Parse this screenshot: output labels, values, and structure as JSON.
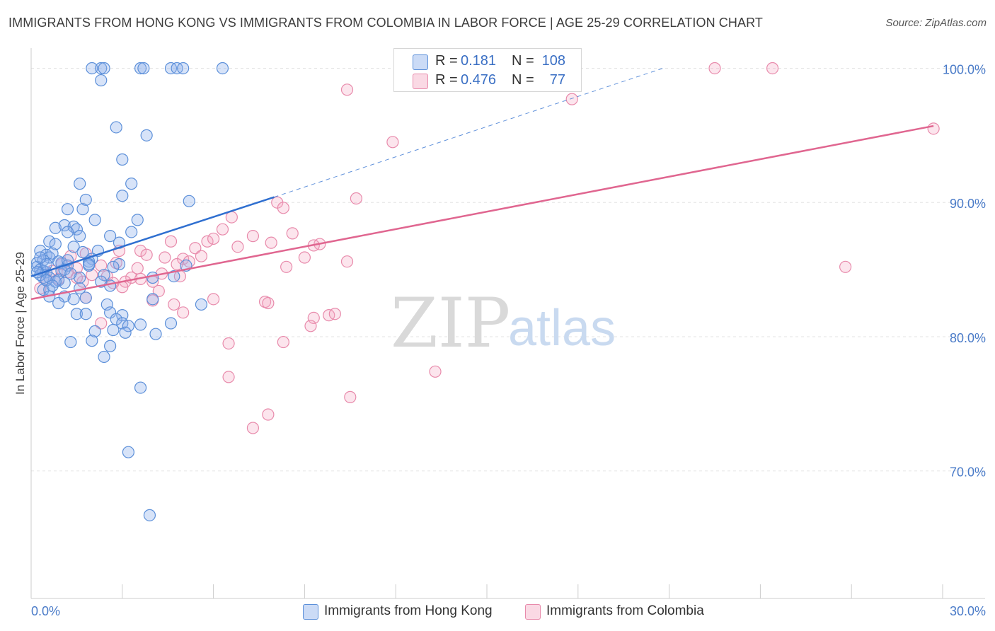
{
  "chart_data": {
    "type": "scatter",
    "title": "IMMIGRANTS FROM HONG KONG VS IMMIGRANTS FROM COLOMBIA IN LABOR FORCE | AGE 25-29 CORRELATION CHART",
    "source": "Source: ZipAtlas.com",
    "xlabel": "",
    "ylabel": "In Labor Force | Age 25-29",
    "xlim": [
      0,
      30
    ],
    "ylim": [
      60.5,
      101.5
    ],
    "x_tick_labels": {
      "min": "0.0%",
      "max": "30.0%"
    },
    "y_ticks": [
      {
        "value": 70,
        "label": "70.0%"
      },
      {
        "value": 80,
        "label": "80.0%"
      },
      {
        "value": 90,
        "label": "90.0%"
      },
      {
        "value": 100,
        "label": "100.0%"
      }
    ],
    "grid": true,
    "legend_position": "bottom-center",
    "watermark": {
      "part1": "ZIP",
      "part2": "atlas"
    },
    "colors": {
      "hong_kong": "#5b8fd9",
      "hong_kong_line": "#2f6fd0",
      "colombia": "#e88aab",
      "colombia_line": "#e06690",
      "tick_text": "#4a7bc8",
      "grid": "#e3e3e3"
    },
    "stats": [
      {
        "r_label": "R =",
        "r_value": "0.181",
        "n_label": "N =",
        "n_value": "108"
      },
      {
        "r_label": "R =",
        "r_value": "0.476",
        "n_label": "N =",
        "n_value": "77"
      }
    ],
    "series": [
      {
        "name": "Immigrants from Hong Kong",
        "trend": {
          "x_start": 0,
          "y_start": 84.5,
          "x_solid_end": 8.0,
          "y_solid_end": 90.4,
          "x_dash_end": 20.8,
          "y_dash_end": 100.0
        },
        "points": [
          [
            2.0,
            100
          ],
          [
            2.3,
            100
          ],
          [
            2.4,
            100
          ],
          [
            3.6,
            100
          ],
          [
            3.7,
            100
          ],
          [
            4.6,
            100
          ],
          [
            4.8,
            100
          ],
          [
            5.0,
            100
          ],
          [
            6.3,
            100
          ],
          [
            2.3,
            99.1
          ],
          [
            2.8,
            95.6
          ],
          [
            3.8,
            95.0
          ],
          [
            3.0,
            93.2
          ],
          [
            1.6,
            91.4
          ],
          [
            3.3,
            91.4
          ],
          [
            3.0,
            90.5
          ],
          [
            5.2,
            90.1
          ],
          [
            1.8,
            90.2
          ],
          [
            1.2,
            89.5
          ],
          [
            1.7,
            89.5
          ],
          [
            2.1,
            88.7
          ],
          [
            3.5,
            88.7
          ],
          [
            0.8,
            88.1
          ],
          [
            1.1,
            88.3
          ],
          [
            1.4,
            88.2
          ],
          [
            1.5,
            88.0
          ],
          [
            1.2,
            87.8
          ],
          [
            1.6,
            87.5
          ],
          [
            2.6,
            87.5
          ],
          [
            3.3,
            87.8
          ],
          [
            0.6,
            87.1
          ],
          [
            0.8,
            86.9
          ],
          [
            2.9,
            87.0
          ],
          [
            1.4,
            86.7
          ],
          [
            1.7,
            86.3
          ],
          [
            2.2,
            86.4
          ],
          [
            0.3,
            86.4
          ],
          [
            0.5,
            86.1
          ],
          [
            0.6,
            85.9
          ],
          [
            2.0,
            85.8
          ],
          [
            1.9,
            85.6
          ],
          [
            0.2,
            85.5
          ],
          [
            0.4,
            85.7
          ],
          [
            1.0,
            85.5
          ],
          [
            1.2,
            85.3
          ],
          [
            1.9,
            85.3
          ],
          [
            2.9,
            85.4
          ],
          [
            5.1,
            85.3
          ],
          [
            0.2,
            85.2
          ],
          [
            0.3,
            85.0
          ],
          [
            0.4,
            84.9
          ],
          [
            0.5,
            84.8
          ],
          [
            1.0,
            84.9
          ],
          [
            0.4,
            84.4
          ],
          [
            0.6,
            84.4
          ],
          [
            0.9,
            84.2
          ],
          [
            1.6,
            84.4
          ],
          [
            2.4,
            84.6
          ],
          [
            4.0,
            84.4
          ],
          [
            4.7,
            84.5
          ],
          [
            0.3,
            84.6
          ],
          [
            1.1,
            84.0
          ],
          [
            2.3,
            84.1
          ],
          [
            0.4,
            83.5
          ],
          [
            0.6,
            83.5
          ],
          [
            1.6,
            83.6
          ],
          [
            2.6,
            83.8
          ],
          [
            0.6,
            83.0
          ],
          [
            1.1,
            83.0
          ],
          [
            1.4,
            82.8
          ],
          [
            1.8,
            82.9
          ],
          [
            0.9,
            82.5
          ],
          [
            2.5,
            82.4
          ],
          [
            4.0,
            82.8
          ],
          [
            5.6,
            82.4
          ],
          [
            1.5,
            81.7
          ],
          [
            1.8,
            81.7
          ],
          [
            2.6,
            81.8
          ],
          [
            3.0,
            81.6
          ],
          [
            2.8,
            81.3
          ],
          [
            3.0,
            81.0
          ],
          [
            3.2,
            80.8
          ],
          [
            3.6,
            80.9
          ],
          [
            4.6,
            81.0
          ],
          [
            2.1,
            80.4
          ],
          [
            2.7,
            80.5
          ],
          [
            3.1,
            80.3
          ],
          [
            4.1,
            80.2
          ],
          [
            1.3,
            79.6
          ],
          [
            2.0,
            79.7
          ],
          [
            2.6,
            79.3
          ],
          [
            2.4,
            78.5
          ],
          [
            3.6,
            76.2
          ],
          [
            3.2,
            71.4
          ],
          [
            3.9,
            66.7
          ],
          [
            1.9,
            85.4
          ],
          [
            2.7,
            85.2
          ],
          [
            0.7,
            86.2
          ],
          [
            1.1,
            85.0
          ],
          [
            0.5,
            85.4
          ],
          [
            1.3,
            84.7
          ],
          [
            0.8,
            84.1
          ],
          [
            0.2,
            84.8
          ],
          [
            0.3,
            85.9
          ],
          [
            0.9,
            85.6
          ],
          [
            1.2,
            85.7
          ],
          [
            0.5,
            84.2
          ],
          [
            0.7,
            83.8
          ]
        ]
      },
      {
        "name": "Immigrants from Colombia",
        "trend": {
          "x_start": 0,
          "y_start": 82.8,
          "x_end": 29.7,
          "y_end": 95.7
        },
        "points": [
          [
            22.5,
            100
          ],
          [
            24.4,
            100
          ],
          [
            10.4,
            98.4
          ],
          [
            17.8,
            97.7
          ],
          [
            11.9,
            94.5
          ],
          [
            29.7,
            95.5
          ],
          [
            10.7,
            90.3
          ],
          [
            8.1,
            90.0
          ],
          [
            8.3,
            89.6
          ],
          [
            6.6,
            88.9
          ],
          [
            6.3,
            88.0
          ],
          [
            8.6,
            87.7
          ],
          [
            7.3,
            87.5
          ],
          [
            5.8,
            87.1
          ],
          [
            6.0,
            87.3
          ],
          [
            7.9,
            87.0
          ],
          [
            9.5,
            86.9
          ],
          [
            9.3,
            86.8
          ],
          [
            6.8,
            86.7
          ],
          [
            5.4,
            86.6
          ],
          [
            4.6,
            87.1
          ],
          [
            3.6,
            86.4
          ],
          [
            2.9,
            86.4
          ],
          [
            3.8,
            86.1
          ],
          [
            4.4,
            85.9
          ],
          [
            5.0,
            85.8
          ],
          [
            5.6,
            86.0
          ],
          [
            9.0,
            85.9
          ],
          [
            1.3,
            86.0
          ],
          [
            1.8,
            86.2
          ],
          [
            10.4,
            85.6
          ],
          [
            8.4,
            85.2
          ],
          [
            2.3,
            85.3
          ],
          [
            2.8,
            85.5
          ],
          [
            1.0,
            85.4
          ],
          [
            1.5,
            85.1
          ],
          [
            3.5,
            85.1
          ],
          [
            4.8,
            85.4
          ],
          [
            5.2,
            85.6
          ],
          [
            26.8,
            85.2
          ],
          [
            0.7,
            84.9
          ],
          [
            1.2,
            84.8
          ],
          [
            2.0,
            84.6
          ],
          [
            2.5,
            84.5
          ],
          [
            3.3,
            84.4
          ],
          [
            4.3,
            84.7
          ],
          [
            4.9,
            84.5
          ],
          [
            0.9,
            84.3
          ],
          [
            1.7,
            84.1
          ],
          [
            2.7,
            84.0
          ],
          [
            3.1,
            84.1
          ],
          [
            3.6,
            84.3
          ],
          [
            0.5,
            84.3
          ],
          [
            4.0,
            84.1
          ],
          [
            0.3,
            83.6
          ],
          [
            3.0,
            83.7
          ],
          [
            4.2,
            83.4
          ],
          [
            1.8,
            82.9
          ],
          [
            4.0,
            82.7
          ],
          [
            4.7,
            82.4
          ],
          [
            6.0,
            82.8
          ],
          [
            7.7,
            82.6
          ],
          [
            7.8,
            82.5
          ],
          [
            5.0,
            81.8
          ],
          [
            9.8,
            81.6
          ],
          [
            10.0,
            81.7
          ],
          [
            9.3,
            81.4
          ],
          [
            2.3,
            81.0
          ],
          [
            9.2,
            80.8
          ],
          [
            8.3,
            79.6
          ],
          [
            6.5,
            79.5
          ],
          [
            13.3,
            77.4
          ],
          [
            6.5,
            77.0
          ],
          [
            10.5,
            75.5
          ],
          [
            7.8,
            74.2
          ],
          [
            7.3,
            73.2
          ],
          [
            1.5,
            84.4
          ]
        ]
      }
    ]
  }
}
